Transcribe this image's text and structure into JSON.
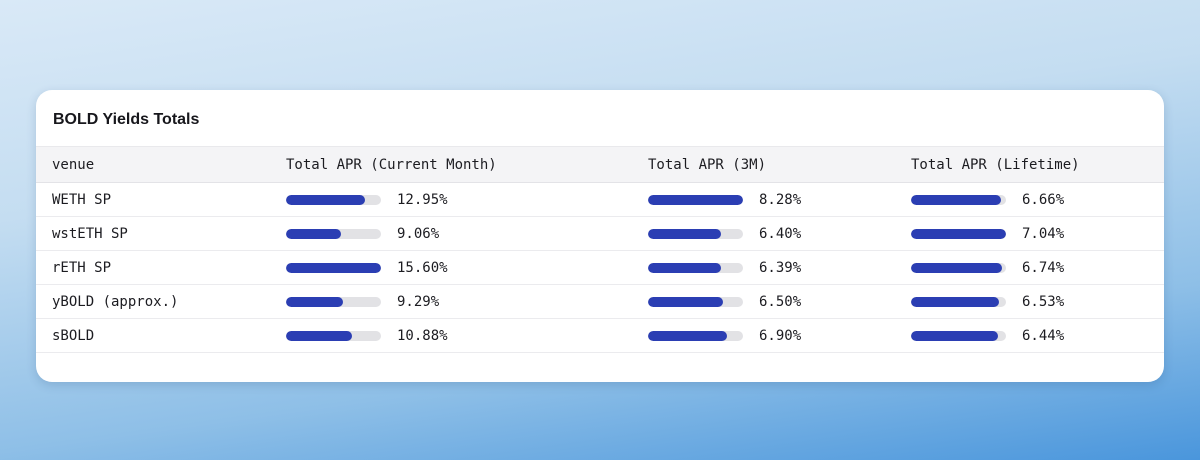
{
  "card": {
    "title": "BOLD Yields Totals"
  },
  "chart_data": {
    "type": "table",
    "title": "BOLD Yields Totals",
    "columns": [
      "venue",
      "Total APR (Current Month)",
      "Total APR (3M)",
      "Total APR (Lifetime)"
    ],
    "value_format": "percent_two_decimals",
    "bar_scaling": "relative_to_column_max",
    "rows": [
      {
        "venue": "WETH SP",
        "values": [
          12.95,
          8.28,
          6.66
        ]
      },
      {
        "venue": "wstETH SP",
        "values": [
          9.06,
          6.4,
          7.04
        ]
      },
      {
        "venue": "rETH SP",
        "values": [
          15.6,
          6.39,
          6.74
        ]
      },
      {
        "venue": "yBOLD (approx.)",
        "values": [
          9.29,
          6.5,
          6.53
        ]
      },
      {
        "venue": "sBOLD",
        "values": [
          10.88,
          6.9,
          6.44
        ]
      }
    ]
  },
  "colors": {
    "bar_fill": "#2b3eb3",
    "bar_track": "#e2e2e5",
    "header_bg": "#f4f4f6",
    "card_bg": "#ffffff",
    "background_top": "#d9e9f7",
    "background_bottom": "#4a96dc"
  }
}
